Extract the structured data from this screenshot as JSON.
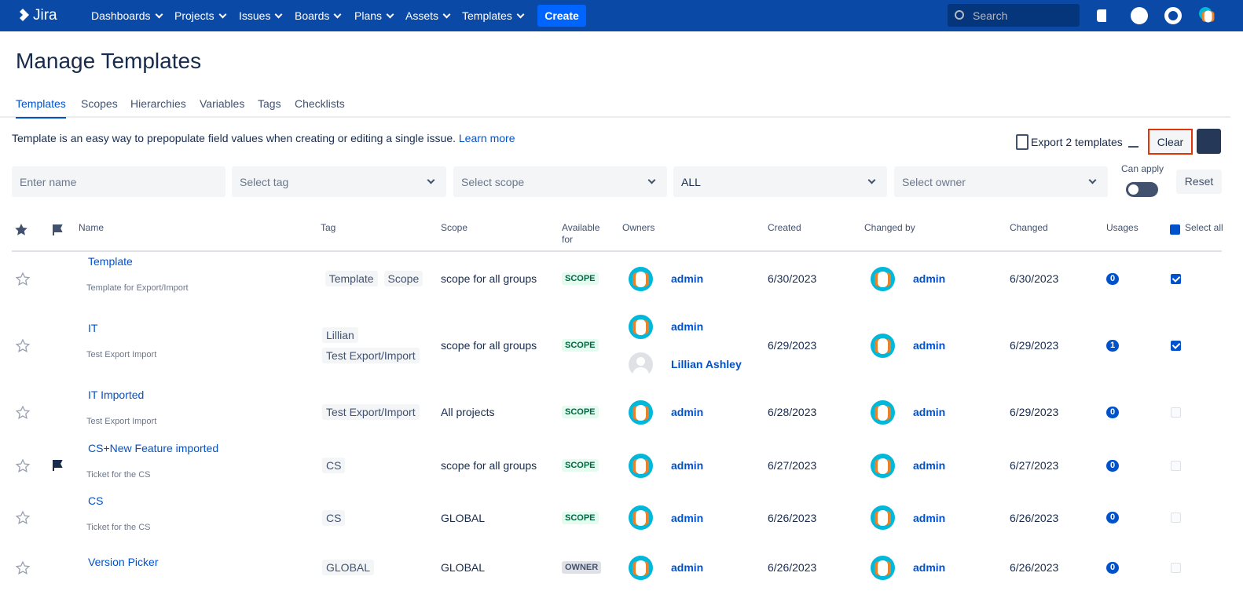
{
  "nav": {
    "logo": "Jira",
    "items": [
      "Dashboards",
      "Projects",
      "Issues",
      "Boards",
      "Plans",
      "Assets",
      "Templates"
    ],
    "create": "Create",
    "search": "Search"
  },
  "page": {
    "title": "Manage Templates",
    "tabs": [
      "Templates",
      "Scopes",
      "Hierarchies",
      "Variables",
      "Tags",
      "Checklists"
    ],
    "intro": "Template is an easy way to prepopulate field values when creating or editing a single issue.",
    "learn_more": "Learn more",
    "export": "Export 2 templates",
    "clear": "Clear"
  },
  "filters": {
    "name": "Enter name",
    "tag": "Select tag",
    "scope": "Select scope",
    "available": "ALL",
    "owner": "Select owner",
    "can_apply": "Can apply",
    "reset": "Reset"
  },
  "table": {
    "headers": [
      "Name",
      "Tag",
      "Scope",
      "Available for",
      "Owners",
      "Created",
      "Changed by",
      "Changed",
      "Usages",
      "Select all"
    ],
    "rows": [
      {
        "name": "Template",
        "description": "Template for Export/Import",
        "tags": [
          "Template",
          "Scope"
        ],
        "scope": "scope for all groups",
        "available": "SCOPE",
        "owners": [
          {
            "name": "admin",
            "avatar": "dog"
          }
        ],
        "created": "6/30/2023",
        "changed_by": "admin",
        "changed": "6/30/2023",
        "usages": 0,
        "checked": true,
        "flagged": false
      },
      {
        "name": "IT",
        "description": "Test Export Import",
        "tags": [
          "Lillian",
          "Test Export/Import"
        ],
        "scope": "scope for all groups",
        "available": "SCOPE",
        "owners": [
          {
            "name": "admin",
            "avatar": "dog"
          },
          {
            "name": "Lillian Ashley",
            "avatar": "default"
          }
        ],
        "created": "6/29/2023",
        "changed_by": "admin",
        "changed": "6/29/2023",
        "usages": 1,
        "checked": true,
        "flagged": false
      },
      {
        "name": "IT Imported",
        "description": "Test Export Import",
        "tags": [
          "Test Export/Import"
        ],
        "scope": "All projects",
        "available": "SCOPE",
        "owners": [
          {
            "name": "admin",
            "avatar": "dog"
          }
        ],
        "created": "6/28/2023",
        "changed_by": "admin",
        "changed": "6/29/2023",
        "usages": 0,
        "checked": false,
        "flagged": false
      },
      {
        "name": "CS+New Feature imported",
        "description": "Ticket for the CS",
        "tags": [
          "CS"
        ],
        "scope": "scope for all groups",
        "available": "SCOPE",
        "owners": [
          {
            "name": "admin",
            "avatar": "dog"
          }
        ],
        "created": "6/27/2023",
        "changed_by": "admin",
        "changed": "6/27/2023",
        "usages": 0,
        "checked": false,
        "flagged": true
      },
      {
        "name": "CS",
        "description": "Ticket for the CS",
        "tags": [
          "CS"
        ],
        "scope": "GLOBAL",
        "available": "SCOPE",
        "owners": [
          {
            "name": "admin",
            "avatar": "dog"
          }
        ],
        "created": "6/26/2023",
        "changed_by": "admin",
        "changed": "6/26/2023",
        "usages": 0,
        "checked": false,
        "flagged": false
      },
      {
        "name": "Version Picker",
        "tags": [
          "GLOBAL"
        ],
        "scope": "GLOBAL",
        "available": "OWNER",
        "owners": [
          {
            "name": "admin",
            "avatar": "dog"
          }
        ],
        "created": "6/26/2023",
        "changed_by": "admin",
        "changed": "6/26/2023",
        "usages": 0,
        "checked": false,
        "flagged": false
      }
    ]
  }
}
